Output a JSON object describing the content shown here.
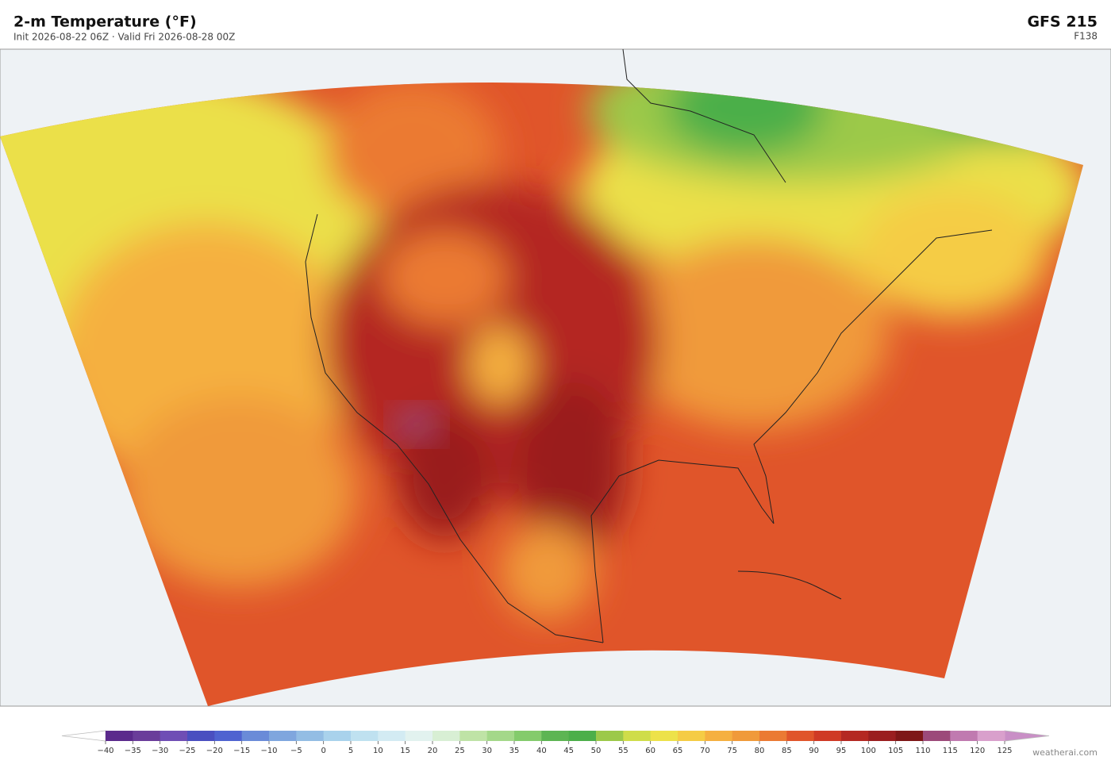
{
  "header": {
    "title": "2-m Temperature  (°F)",
    "subtitle": "Init 2026-08-22 06Z  ·  Valid Fri 2026-08-28 00Z",
    "model": "GFS  215",
    "forecast_hour": "F138"
  },
  "colorbar": {
    "ticks": [
      {
        "value": -40,
        "label": "−40"
      },
      {
        "value": -35,
        "label": "−35"
      },
      {
        "value": -30,
        "label": "−30"
      },
      {
        "value": -25,
        "label": "−25"
      },
      {
        "value": -20,
        "label": "−20"
      },
      {
        "value": -15,
        "label": "−15"
      },
      {
        "value": -10,
        "label": "−10"
      },
      {
        "value": -5,
        "label": "−5"
      },
      0,
      5,
      10,
      15,
      20,
      25,
      30,
      35,
      40,
      45,
      50,
      55,
      60,
      65,
      70,
      75,
      80,
      85,
      90,
      95,
      100,
      105,
      110,
      115,
      120,
      125
    ],
    "colors": [
      "#5b2a8c",
      "#6a3d9a",
      "#6f4eb5",
      "#4a4fc0",
      "#4f63d0",
      "#6a8bd8",
      "#7fa6de",
      "#93bde4",
      "#a9d2ec",
      "#bfe1f0",
      "#d3ebf3",
      "#e2f2ef",
      "#d8efd4",
      "#bfe3a6",
      "#a4d88a",
      "#84cb6c",
      "#5db553",
      "#4caf4a",
      "#9cc94a",
      "#cfdd4a",
      "#ede24a",
      "#f5cc45",
      "#f5b040",
      "#f09a3a",
      "#eb7a33",
      "#e0552a",
      "#cf3a25",
      "#b42822",
      "#9a1e1f",
      "#7e1717",
      "#9c4a7a",
      "#c07ab0",
      "#d9a0cc"
    ],
    "under_color": "#ffffff",
    "over_color": "#c98fc6"
  },
  "watermark": "weatherai.com"
}
